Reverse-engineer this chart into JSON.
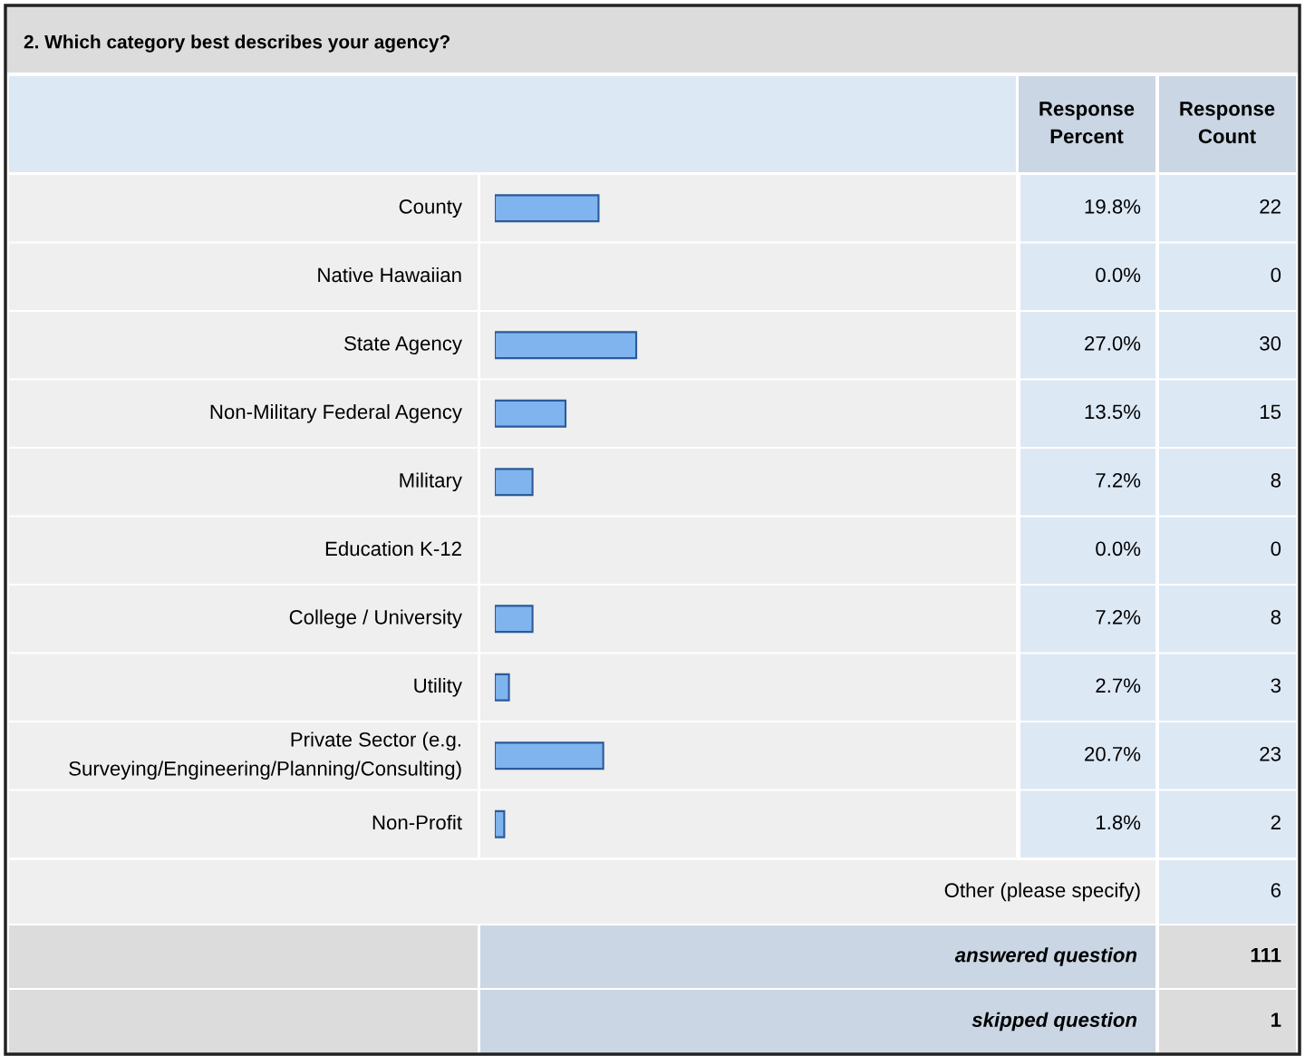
{
  "chart_data": {
    "type": "bar",
    "orientation": "horizontal",
    "title": "2. Which category best describes your agency?",
    "categories": [
      "County",
      "Native Hawaiian",
      "State Agency",
      "Non-Military Federal Agency",
      "Military",
      "Education K-12",
      "College / University",
      "Utility",
      "Private Sector (e.g.\nSurveying/Engineering/Planning/Consulting)",
      "Non-Profit"
    ],
    "values": [
      19.8,
      0.0,
      27.0,
      13.5,
      7.2,
      0.0,
      7.2,
      2.7,
      20.7,
      1.8
    ],
    "value_labels": [
      "19.8%",
      "0.0%",
      "27.0%",
      "13.5%",
      "7.2%",
      "0.0%",
      "7.2%",
      "2.7%",
      "20.7%",
      "1.8%"
    ],
    "color": "#7fb4ef",
    "xlim": [
      0,
      100
    ],
    "annotations": [
      "Response Percent",
      "Response Count",
      "22",
      "0",
      "30",
      "15",
      "8",
      "0",
      "8",
      "3",
      "23",
      "2",
      "Other (please specify)",
      "6",
      "answered question",
      "111",
      "skipped question",
      "1"
    ]
  }
}
